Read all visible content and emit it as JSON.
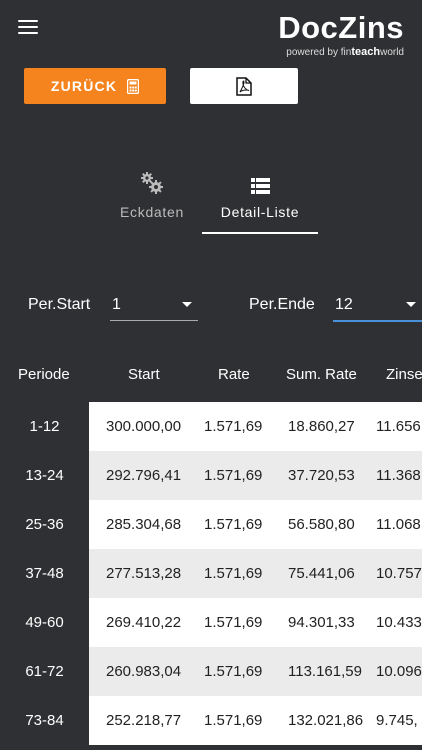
{
  "header": {
    "logo_title": "DocZins",
    "logo_powered": "powered by",
    "logo_brand_pre": "fin",
    "logo_brand_bold": "teach",
    "logo_brand_post": "world"
  },
  "toolbar": {
    "back_label": "ZURÜCK",
    "back_icon": "calculator-icon",
    "pdf_icon": "pdf-icon"
  },
  "tabs": [
    {
      "label": "Eckdaten",
      "icon": "gears-icon",
      "active": false
    },
    {
      "label": "Detail-Liste",
      "icon": "list-icon",
      "active": true
    }
  ],
  "filters": {
    "start_label": "Per.Start",
    "start_value": "1",
    "end_label": "Per.Ende",
    "end_value": "12"
  },
  "table": {
    "columns": [
      "Periode",
      "Start",
      "Rate",
      "Sum. Rate",
      "Zinse"
    ],
    "rows": [
      {
        "period": "1-12",
        "start": "300.000,00",
        "rate": "1.571,69",
        "sum": "18.860,27",
        "zins": "11.656"
      },
      {
        "period": "13-24",
        "start": "292.796,41",
        "rate": "1.571,69",
        "sum": "37.720,53",
        "zins": "11.368"
      },
      {
        "period": "25-36",
        "start": "285.304,68",
        "rate": "1.571,69",
        "sum": "56.580,80",
        "zins": "11.068"
      },
      {
        "period": "37-48",
        "start": "277.513,28",
        "rate": "1.571,69",
        "sum": "75.441,06",
        "zins": "10.757"
      },
      {
        "period": "49-60",
        "start": "269.410,22",
        "rate": "1.571,69",
        "sum": "94.301,33",
        "zins": "10.433"
      },
      {
        "period": "61-72",
        "start": "260.983,04",
        "rate": "1.571,69",
        "sum": "113.161,59",
        "zins": "10.096"
      },
      {
        "period": "73-84",
        "start": "252.218,77",
        "rate": "1.571,69",
        "sum": "132.021,86",
        "zins": "9.745,"
      }
    ]
  }
}
